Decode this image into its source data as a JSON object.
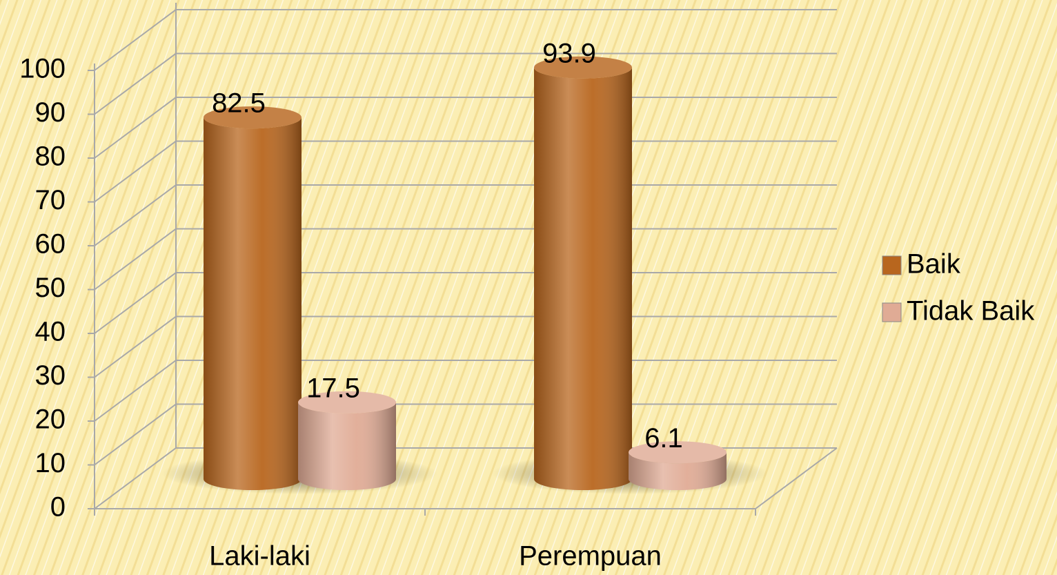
{
  "chart_data": {
    "type": "bar3d",
    "categories": [
      "Laki-laki",
      "Perempuan"
    ],
    "series": [
      {
        "name": "Baik",
        "color": "#b8661e",
        "values": [
          82.5,
          93.9
        ]
      },
      {
        "name": "Tidak Baik",
        "color": "#e0ab95",
        "values": [
          17.5,
          6.1
        ]
      }
    ],
    "ylim": [
      0,
      100
    ],
    "yticks": [
      0,
      10,
      20,
      30,
      40,
      50,
      60,
      70,
      80,
      90,
      100
    ],
    "grid": true,
    "legend": "right"
  }
}
